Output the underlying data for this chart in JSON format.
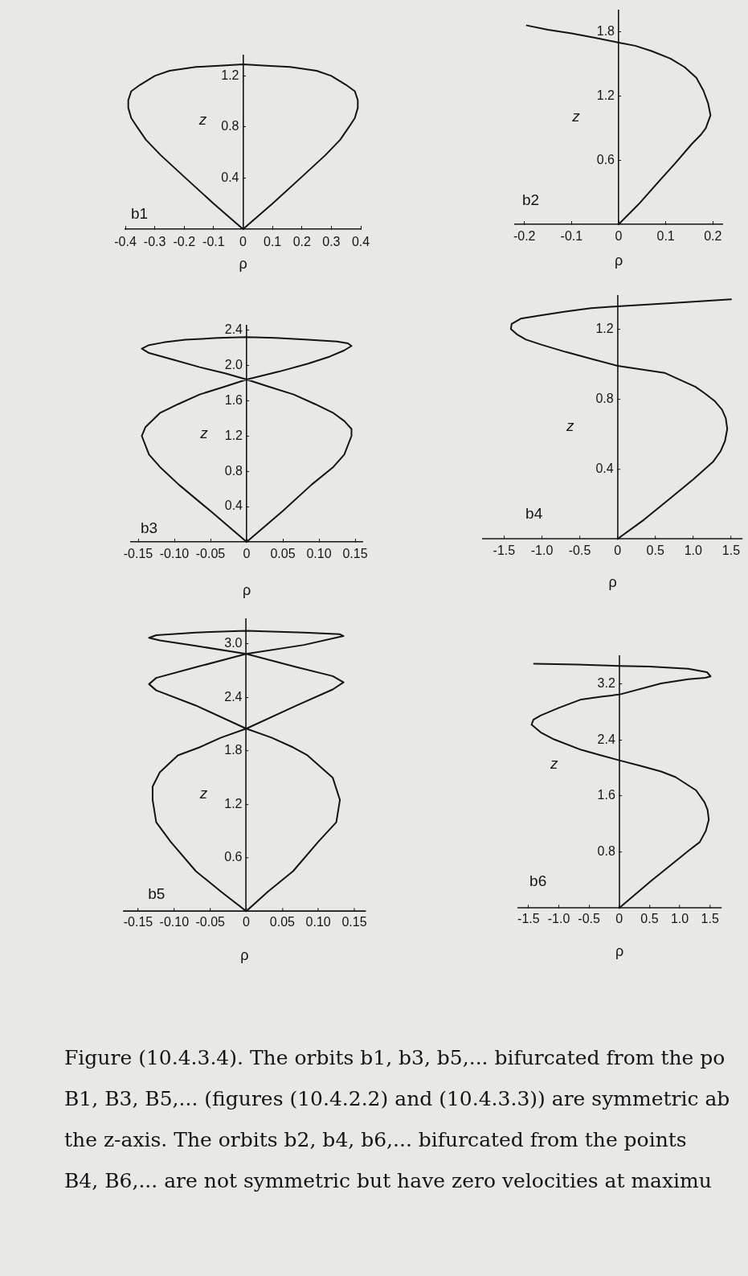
{
  "chart_data": [
    {
      "type": "line",
      "title": "b1",
      "xlabel": "ρ",
      "ylabel": "z",
      "color": "#141414",
      "x": [
        0,
        -0.1,
        -0.2,
        -0.28,
        -0.33,
        -0.36,
        -0.38,
        -0.39,
        -0.39,
        -0.38,
        -0.35,
        -0.3,
        -0.25,
        -0.16,
        -0.08,
        0,
        0.08,
        0.16,
        0.25,
        0.3,
        0.35,
        0.38,
        0.39,
        0.39,
        0.38,
        0.36,
        0.33,
        0.28,
        0.2,
        0.1,
        0,
        -0.1
      ],
      "values": [
        0,
        0.2,
        0.41,
        0.58,
        0.7,
        0.8,
        0.87,
        0.95,
        1.01,
        1.08,
        1.13,
        1.2,
        1.24,
        1.27,
        1.28,
        1.29,
        1.28,
        1.27,
        1.24,
        1.2,
        1.13,
        1.08,
        1.01,
        0.95,
        0.87,
        0.8,
        0.7,
        0.58,
        0.41,
        0.2,
        0,
        0.2
      ],
      "xlim": [
        -0.4,
        0.4
      ],
      "ylim": [
        0,
        1.36
      ],
      "xticks": [
        -0.4,
        -0.3,
        -0.2,
        -0.1,
        0,
        0.1,
        0.2,
        0.3,
        0.4
      ],
      "yticks": [
        0.4,
        0.8,
        1.2
      ]
    },
    {
      "type": "line",
      "title": "b2",
      "xlabel": "ρ",
      "ylabel": "z",
      "color": "#141414",
      "x": [
        0,
        0.045,
        0.085,
        0.12,
        0.155,
        0.175,
        0.185,
        0.195,
        0.19,
        0.18,
        0.165,
        0.14,
        0.11,
        0.07,
        0.035,
        0,
        -0.05,
        -0.1,
        -0.15,
        -0.195
      ],
      "values": [
        0,
        0.2,
        0.4,
        0.57,
        0.75,
        0.84,
        0.9,
        1.02,
        1.13,
        1.25,
        1.37,
        1.47,
        1.55,
        1.62,
        1.67,
        1.7,
        1.745,
        1.785,
        1.82,
        1.86
      ],
      "xlim": [
        -0.22,
        0.22
      ],
      "ylim": [
        0,
        2
      ],
      "xticks": [
        -0.2,
        -0.1,
        0,
        0.1,
        0.2
      ],
      "yticks": [
        0.6,
        1.2,
        1.8
      ]
    },
    {
      "type": "line",
      "title": "b3",
      "xlabel": "ρ",
      "ylabel": "z",
      "color": "#141414",
      "x": [
        0,
        -0.05,
        -0.094,
        -0.12,
        -0.135,
        -0.145,
        -0.14,
        -0.13,
        -0.12,
        -0.095,
        -0.065,
        -0.03,
        0,
        0.045,
        0.085,
        0.115,
        0.135,
        0.145,
        0.14,
        0.125,
        0.085,
        0.04,
        0,
        -0.04,
        -0.085,
        -0.115,
        -0.135,
        -0.145,
        -0.135,
        -0.1,
        -0.065,
        -0.03,
        0,
        0.03,
        0.065,
        0.095,
        0.12,
        0.135,
        0.145,
        0.145,
        0.135,
        0.12,
        0.09,
        0.05,
        0,
        -0.05
      ],
      "values": [
        0,
        0.35,
        0.65,
        0.85,
        0.99,
        1.2,
        1.3,
        1.38,
        1.46,
        1.56,
        1.67,
        1.76,
        1.84,
        1.93,
        2.02,
        2.1,
        2.17,
        2.22,
        2.25,
        2.27,
        2.29,
        2.31,
        2.32,
        2.31,
        2.29,
        2.26,
        2.23,
        2.19,
        2.14,
        2.06,
        1.98,
        1.91,
        1.84,
        1.76,
        1.67,
        1.56,
        1.46,
        1.37,
        1.28,
        1.2,
        0.99,
        0.85,
        0.65,
        0.35,
        0,
        0.35
      ],
      "xlim": [
        -0.16,
        0.16
      ],
      "ylim": [
        0,
        2.45
      ],
      "xticks": [
        -0.15,
        {
          "value": -0.1,
          "label": "-0.10"
        },
        -0.05,
        0,
        0.05,
        {
          "value": 0.1,
          "label": "0.10"
        },
        0.15
      ],
      "yticks": [
        0.4,
        0.8,
        1.2,
        1.6,
        {
          "value": 2,
          "label": "2.0"
        },
        2.4
      ]
    },
    {
      "type": "line",
      "title": "b4",
      "xlabel": "ρ",
      "ylabel": "z",
      "color": "#141414",
      "x": [
        0,
        0.35,
        0.69,
        1,
        1.26,
        1.36,
        1.42,
        1.45,
        1.43,
        1.38,
        1.28,
        1.16,
        1.03,
        0.62,
        0.3,
        0,
        -0.35,
        -0.69,
        -1,
        -1.21,
        -1.33,
        -1.41,
        -1.4,
        -1.28,
        -1,
        -0.69,
        -0.35,
        0,
        0.75,
        1.5
      ],
      "values": [
        0,
        0.11,
        0.23,
        0.34,
        0.44,
        0.5,
        0.56,
        0.63,
        0.69,
        0.74,
        0.79,
        0.83,
        0.87,
        0.95,
        0.97,
        0.99,
        1.03,
        1.07,
        1.11,
        1.14,
        1.17,
        1.2,
        1.23,
        1.26,
        1.28,
        1.3,
        1.32,
        1.33,
        1.35,
        1.37
      ],
      "xlim": [
        -1.78,
        1.65
      ],
      "ylim": [
        0,
        1.39
      ],
      "xticks": [
        -1.5,
        {
          "value": -1,
          "label": "-1.0"
        },
        -0.5,
        0,
        0.5,
        {
          "value": 1,
          "label": "1.0"
        },
        1.5
      ],
      "yticks": [
        0.4,
        0.8,
        1.2
      ]
    },
    {
      "type": "line",
      "title": "b5",
      "xlabel": "ρ",
      "ylabel": "z",
      "color": "#141414",
      "x": [
        0,
        -0.035,
        -0.07,
        -0.105,
        -0.125,
        -0.13,
        -0.13,
        -0.12,
        -0.095,
        -0.065,
        -0.035,
        0,
        0.07,
        0.12,
        0.135,
        0.12,
        0.07,
        0,
        -0.07,
        -0.12,
        -0.135,
        -0.125,
        -0.07,
        0,
        0.08,
        0.13,
        0.135,
        0.08,
        0,
        -0.07,
        -0.125,
        -0.135,
        -0.125,
        -0.07,
        0,
        0.035,
        0.065,
        0.085,
        0.12,
        0.13,
        0.125,
        0.1,
        0.065,
        0.03,
        0,
        -0.035
      ],
      "values": [
        0,
        0.22,
        0.45,
        0.78,
        1,
        1.25,
        1.4,
        1.56,
        1.75,
        1.84,
        1.95,
        2.05,
        2.31,
        2.49,
        2.57,
        2.64,
        2.74,
        2.89,
        2.98,
        3.04,
        3.07,
        3.1,
        3.13,
        3.15,
        3.13,
        3.11,
        3.09,
        2.99,
        2.89,
        2.74,
        2.62,
        2.55,
        2.48,
        2.31,
        2.05,
        1.95,
        1.84,
        1.75,
        1.5,
        1.25,
        1,
        0.78,
        0.45,
        0.22,
        0,
        0.22
      ],
      "xlim": [
        -0.17,
        0.165
      ],
      "ylim": [
        0,
        3.28
      ],
      "xticks": [
        -0.15,
        {
          "value": -0.1,
          "label": "-0.10"
        },
        -0.05,
        0,
        0.05,
        {
          "value": 0.1,
          "label": "0.10"
        },
        0.15
      ],
      "yticks": [
        0.6,
        1.2,
        1.8,
        2.4,
        {
          "value": 3,
          "label": "3.0"
        }
      ]
    },
    {
      "type": "line",
      "title": "b6",
      "xlabel": "ρ",
      "ylabel": "z",
      "color": "#141414",
      "x": [
        0,
        0.52,
        0.92,
        1.15,
        1.33,
        1.43,
        1.48,
        1.46,
        1.41,
        1.27,
        0.93,
        0.69,
        0.35,
        0,
        -0.3,
        -0.63,
        -1.08,
        -1.3,
        -1.45,
        -1.42,
        -1.3,
        -1,
        -0.63,
        -0.3,
        0,
        0.69,
        1.14,
        1.42,
        1.51,
        1.45,
        1.14,
        0.5,
        0,
        -0.7,
        -1.41
      ],
      "values": [
        0,
        0.38,
        0.66,
        0.82,
        0.94,
        1.1,
        1.26,
        1.4,
        1.51,
        1.68,
        1.87,
        1.95,
        2.03,
        2.11,
        2.18,
        2.26,
        2.41,
        2.51,
        2.62,
        2.69,
        2.75,
        2.86,
        2.98,
        3.02,
        3.05,
        3.21,
        3.27,
        3.29,
        3.31,
        3.37,
        3.42,
        3.45,
        3.46,
        3.48,
        3.49
      ],
      "xlim": [
        -1.67,
        1.68
      ],
      "ylim": [
        0,
        3.6
      ],
      "xticks": [
        -1.5,
        {
          "value": -1,
          "label": "-1.0"
        },
        -0.5,
        0,
        0.5,
        {
          "value": 1,
          "label": "1.0"
        },
        1.5
      ],
      "yticks": [
        0.8,
        1.6,
        2.4,
        3.2
      ]
    },
    {
      "type": "other",
      "annotations": [
        "Figure (10.4.3.4). The orbits b1, b3, b5,... bifurcated from the po",
        "B1, B3, B5,... (figures (10.4.2.2) and (10.4.3.3)) are symmetric ab",
        "the z-axis. The orbits b2, b4, b6,... bifurcated from the points",
        "B4, B6,... are not symmetric but have zero velocities at maximu"
      ]
    }
  ]
}
